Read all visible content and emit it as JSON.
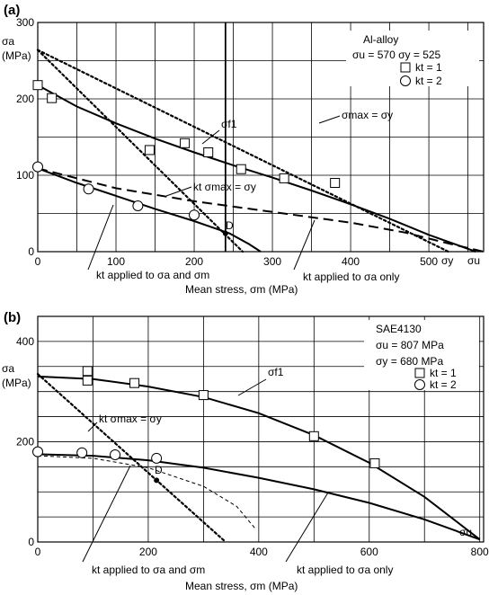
{
  "chart_data": [
    {
      "panel": "(a)",
      "type": "scatter",
      "material": "Al-alloy",
      "props_line": "σu = 570   σy = 525",
      "xlabel": "Mean stress, σm (MPa)",
      "ylabel_sym": "σa",
      "ylabel_unit": "(MPa)",
      "xlim": [
        0,
        570
      ],
      "ylim": [
        0,
        300
      ],
      "xticks": [
        0,
        100,
        200,
        300,
        400,
        500
      ],
      "yticks": [
        0,
        100,
        200,
        300
      ],
      "grid": true,
      "legend_position": "top-right",
      "legend": [
        {
          "marker": "square",
          "label": "kt = 1"
        },
        {
          "marker": "circle",
          "label": "kt = 2"
        }
      ],
      "series": [
        {
          "name": "kt = 1",
          "marker": "square",
          "points": [
            [
              0,
              218
            ],
            [
              18,
              201
            ],
            [
              143,
              133
            ],
            [
              188,
              142
            ],
            [
              218,
              130
            ],
            [
              260,
              108
            ],
            [
              315,
              96
            ],
            [
              380,
              90
            ]
          ]
        },
        {
          "name": "kt = 2",
          "marker": "circle",
          "points": [
            [
              0,
              111
            ],
            [
              65,
              82
            ],
            [
              128,
              60
            ],
            [
              200,
              48
            ]
          ]
        }
      ],
      "curves": [
        {
          "label": "σf1",
          "style": "solid",
          "points": [
            [
              0,
              218
            ],
            [
              50,
              190
            ],
            [
              100,
              168
            ],
            [
              150,
              148
            ],
            [
              200,
              130
            ],
            [
              250,
              113
            ],
            [
              300,
              97
            ],
            [
              350,
              80
            ],
            [
              400,
              62
            ],
            [
              450,
              43
            ],
            [
              500,
              22
            ],
            [
              560,
              0
            ]
          ]
        },
        {
          "label": "kt applied to σa only",
          "style": "dashed",
          "points": [
            [
              0,
              109
            ],
            [
              100,
              83
            ],
            [
              200,
              66
            ],
            [
              300,
              52
            ],
            [
              400,
              38
            ],
            [
              470,
              25
            ],
            [
              520,
              12
            ],
            [
              570,
              0
            ]
          ]
        },
        {
          "label": "kt applied to σa and σm",
          "style": "solid",
          "points": [
            [
              0,
              109
            ],
            [
              50,
              90
            ],
            [
              100,
              73
            ],
            [
              150,
              56
            ],
            [
              200,
              40
            ],
            [
              245,
              24
            ],
            [
              270,
              10
            ],
            [
              285,
              0
            ]
          ]
        },
        {
          "label": "σmax = σy",
          "style": "dotted",
          "points": [
            [
              0,
              264
            ],
            [
              525,
              0
            ]
          ]
        },
        {
          "label": "kt σmax = σy",
          "style": "dotted",
          "points": [
            [
              0,
              264
            ],
            [
              262,
              0
            ]
          ]
        }
      ],
      "point_D": {
        "label": "D",
        "x": 240,
        "y": 24
      },
      "vertical_line_x": 240,
      "annotations": {
        "sf1": "σf1",
        "smax": "σmax = σy",
        "kt_smax": "kt σmax = σy",
        "kt_both": "kt applied to σa and σm",
        "kt_only": "kt applied to σa only",
        "sy_axis": "σy",
        "su_axis": "σu"
      }
    },
    {
      "panel": "(b)",
      "type": "scatter",
      "material": "SAE4130",
      "props_line1": "σu = 807 MPa",
      "props_line2": "σy = 680 MPa",
      "xlabel": "Mean stress, σm (MPa)",
      "ylabel_sym": "σa",
      "ylabel_unit": "(MPa)",
      "xlim": [
        0,
        807
      ],
      "ylim": [
        0,
        450
      ],
      "xticks": [
        0,
        200,
        400,
        600,
        800
      ],
      "yticks": [
        0,
        200,
        400
      ],
      "grid": true,
      "legend_position": "top-right",
      "legend": [
        {
          "marker": "square",
          "label": "kt = 1"
        },
        {
          "marker": "circle",
          "label": "kt = 2"
        }
      ],
      "series": [
        {
          "name": "kt = 1",
          "marker": "square",
          "points": [
            [
              90,
              341
            ],
            [
              90,
              322
            ],
            [
              175,
              317
            ],
            [
              300,
              293
            ],
            [
              500,
              211
            ],
            [
              610,
              157
            ]
          ]
        },
        {
          "name": "kt = 2",
          "marker": "circle",
          "points": [
            [
              0,
              180
            ],
            [
              80,
              178
            ],
            [
              140,
              174
            ],
            [
              215,
              167
            ]
          ]
        }
      ],
      "curves": [
        {
          "label": "σf1",
          "style": "solid",
          "points": [
            [
              0,
              330
            ],
            [
              100,
              325
            ],
            [
              200,
              310
            ],
            [
              300,
              289
            ],
            [
              400,
              257
            ],
            [
              500,
              213
            ],
            [
              600,
              158
            ],
            [
              700,
              90
            ],
            [
              800,
              5
            ]
          ]
        },
        {
          "label": "kt applied to σa only",
          "style": "solid",
          "points": [
            [
              0,
              175
            ],
            [
              100,
              172
            ],
            [
              200,
              163
            ],
            [
              300,
              148
            ],
            [
              400,
              128
            ],
            [
              500,
              105
            ],
            [
              600,
              78
            ],
            [
              700,
              45
            ],
            [
              800,
              5
            ]
          ]
        },
        {
          "label": "kt applied to σa and σm",
          "style": "dashed-thin",
          "points": [
            [
              0,
              172
            ],
            [
              100,
              167
            ],
            [
              200,
              148
            ],
            [
              300,
              111
            ],
            [
              360,
              71
            ],
            [
              395,
              25
            ]
          ]
        },
        {
          "label": "kt σmax = σy",
          "style": "dotted",
          "points": [
            [
              0,
              335
            ],
            [
              340,
              0
            ]
          ]
        }
      ],
      "point_D": {
        "label": "D",
        "x": 215,
        "y": 123
      },
      "annotations": {
        "sf1": "σf1",
        "kt_smax": "kt σmax = σy",
        "kt_both": "kt applied to σa and σm",
        "kt_only": "kt applied to σa only",
        "su_axis": "σu"
      }
    }
  ]
}
